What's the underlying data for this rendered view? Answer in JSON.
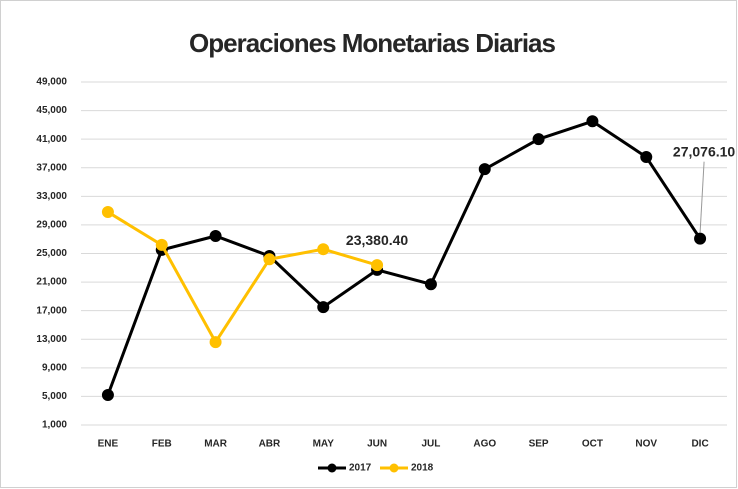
{
  "chart_data": {
    "type": "line",
    "title": "Operaciones Monetarias Diarias",
    "categories": [
      "ENE",
      "FEB",
      "MAR",
      "ABR",
      "MAY",
      "JUN",
      "JUL",
      "AGO",
      "SEP",
      "OCT",
      "NOV",
      "DIC"
    ],
    "series": [
      {
        "name": "2017",
        "color": "#000000",
        "values": [
          5200,
          25500,
          27450,
          24650,
          17500,
          22700,
          20700,
          36800,
          41000,
          43500,
          38500,
          27076.1
        ],
        "value_labels": [
          null,
          null,
          null,
          null,
          null,
          null,
          null,
          null,
          null,
          null,
          null,
          "27,076.10"
        ]
      },
      {
        "name": "2018",
        "color": "#ffc000",
        "values": [
          30800,
          26200,
          12600,
          24200,
          25600,
          23380.4,
          null,
          null,
          null,
          null,
          null,
          null
        ],
        "value_labels": [
          null,
          null,
          null,
          null,
          null,
          "23,380.40",
          null,
          null,
          null,
          null,
          null,
          null
        ]
      }
    ],
    "ylim": [
      1000,
      49000
    ],
    "yticks": [
      {
        "value": 1000,
        "label": "1,000"
      },
      {
        "value": 5000,
        "label": "5,000"
      },
      {
        "value": 9000,
        "label": "9,000"
      },
      {
        "value": 13000,
        "label": "13,000"
      },
      {
        "value": 17000,
        "label": "17,000"
      },
      {
        "value": 21000,
        "label": "21,000"
      },
      {
        "value": 25000,
        "label": "25,000"
      },
      {
        "value": 29000,
        "label": "29,000"
      },
      {
        "value": 33000,
        "label": "33,000"
      },
      {
        "value": 37000,
        "label": "37,000"
      },
      {
        "value": 41000,
        "label": "41,000"
      },
      {
        "value": 45000,
        "label": "45,000"
      },
      {
        "value": 49000,
        "label": "49,000"
      }
    ],
    "grid": true,
    "legend": "bottom"
  }
}
